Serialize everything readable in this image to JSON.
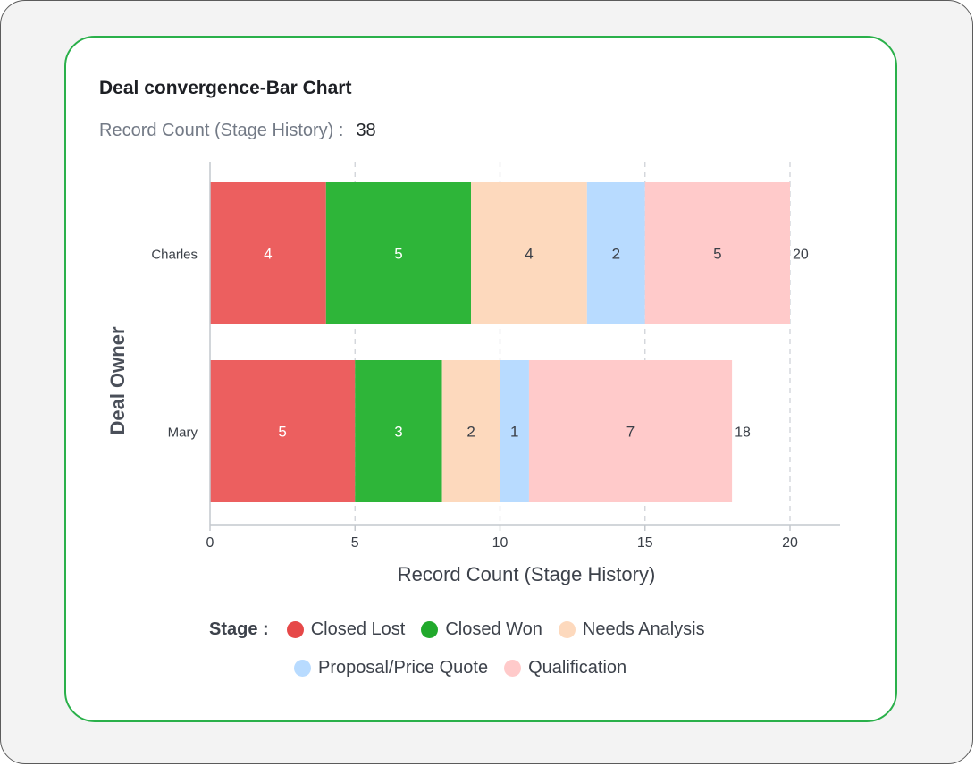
{
  "title": "Deal convergence-Bar Chart",
  "summary": {
    "label": "Record Count (Stage History) :",
    "value": "38"
  },
  "legend_label": "Stage :",
  "chart_data": {
    "type": "bar",
    "orientation": "horizontal",
    "stacked": true,
    "categories": [
      "Charles",
      "Mary"
    ],
    "series": [
      {
        "name": "Closed Lost",
        "color": "#ec5f5f",
        "values": [
          4,
          5
        ]
      },
      {
        "name": "Closed Won",
        "color": "#2eb539",
        "values": [
          5,
          3
        ]
      },
      {
        "name": "Needs Analysis",
        "color": "#fdd9bd",
        "values": [
          4,
          2
        ]
      },
      {
        "name": "Proposal/Price Quote",
        "color": "#b8dbff",
        "values": [
          2,
          1
        ]
      },
      {
        "name": "Qualification",
        "color": "#ffcaca",
        "values": [
          5,
          7
        ]
      }
    ],
    "totals": [
      20,
      18
    ],
    "xlabel": "Record Count (Stage History)",
    "ylabel": "Deal Owner",
    "xlim": [
      0,
      20
    ],
    "xticks": [
      0,
      5,
      10,
      15,
      20
    ],
    "grid": true,
    "legend_position": "bottom"
  }
}
